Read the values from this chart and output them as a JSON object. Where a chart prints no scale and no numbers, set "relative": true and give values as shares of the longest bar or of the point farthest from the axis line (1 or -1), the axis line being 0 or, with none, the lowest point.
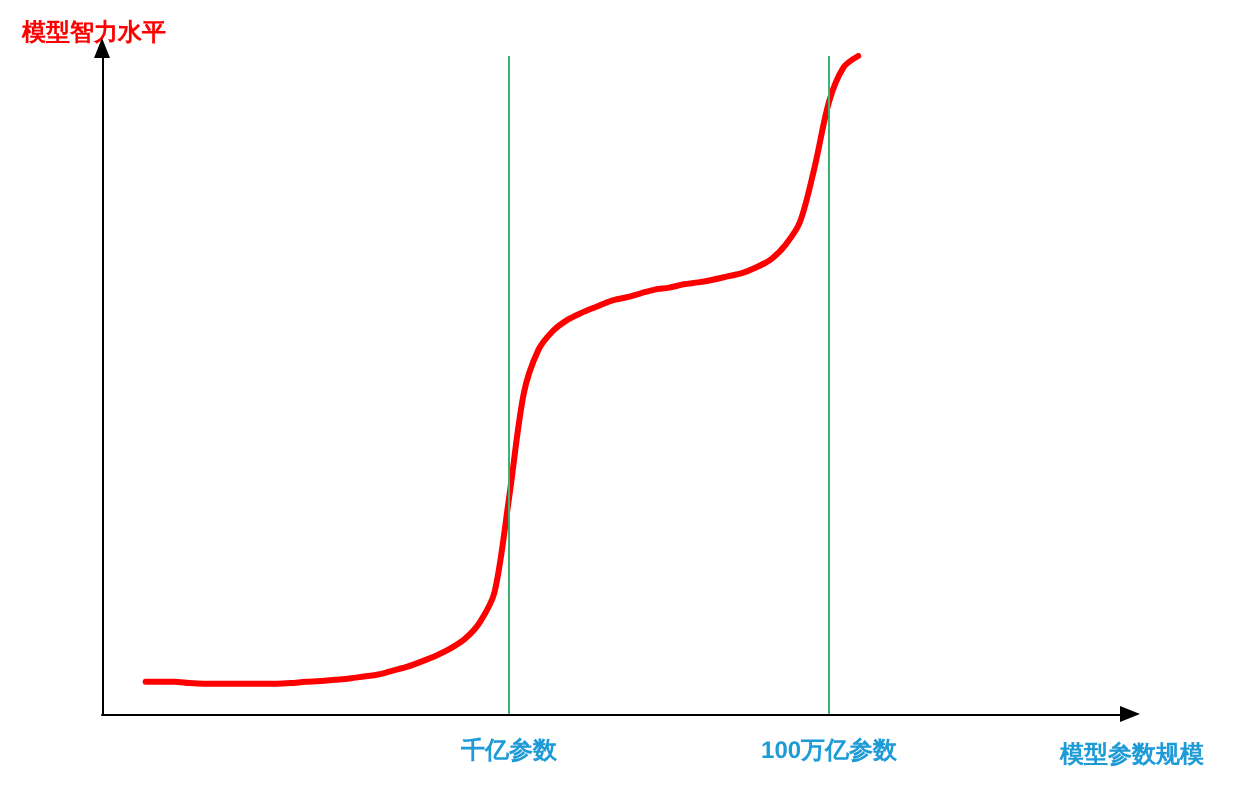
{
  "chart_data": {
    "type": "line",
    "relative": true,
    "xlabel": "模型参数规模",
    "ylabel": "模型智力水平",
    "grid": false,
    "marker": "none",
    "line_style": "solid",
    "categories": [
      null,
      null,
      null,
      null,
      null,
      null,
      null,
      null,
      null,
      null,
      null,
      null,
      null,
      null,
      null,
      null,
      null,
      null,
      null,
      null,
      null,
      null,
      null,
      null,
      null,
      null,
      null,
      null,
      "千亿参数",
      null,
      null,
      null,
      null,
      null,
      null,
      null,
      null,
      null,
      null,
      null,
      null,
      null,
      null,
      null,
      null,
      null,
      null,
      null,
      null,
      null,
      "100万亿参数",
      null,
      null,
      null,
      null,
      null,
      null,
      null,
      null,
      null,
      null,
      null,
      null,
      null,
      null,
      null,
      null,
      null,
      null,
      null,
      null
    ],
    "series": [
      {
        "color": "#ff0000",
        "values": [
          null,
          null,
          null,
          0.049,
          0.049,
          0.049,
          0.047,
          0.046,
          0.046,
          0.046,
          0.046,
          0.046,
          0.046,
          0.047,
          0.049,
          0.05,
          0.052,
          0.054,
          0.057,
          0.06,
          0.066,
          0.072,
          0.08,
          0.089,
          0.1,
          0.115,
          0.14,
          0.186,
          0.33,
          0.487,
          0.553,
          0.582,
          0.599,
          0.61,
          0.619,
          0.628,
          0.633,
          0.639,
          0.645,
          0.648,
          0.653,
          0.656,
          0.66,
          0.665,
          0.67,
          0.679,
          0.691,
          0.713,
          0.748,
          0.831,
          0.931,
          0.983,
          1,
          null,
          null,
          null,
          null,
          null,
          null,
          null,
          null,
          null,
          null,
          null,
          null,
          null,
          null,
          null,
          null,
          null,
          null
        ]
      }
    ],
    "ref_lines": [
      {
        "axis": "x",
        "value": "千亿参数",
        "color": "#3cb371"
      },
      {
        "axis": "x",
        "value": "100万亿参数",
        "color": "#3cb371"
      }
    ]
  }
}
